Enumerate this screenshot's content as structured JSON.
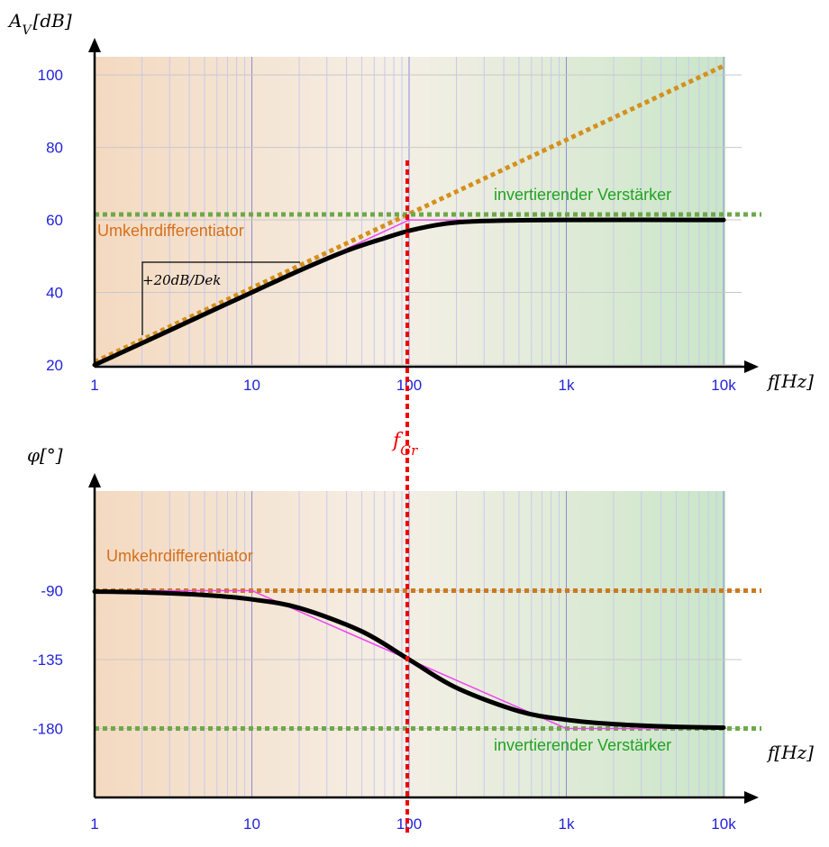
{
  "colors": {
    "bg_left": "#f4d9c0",
    "bg_mid": "#f5efe6",
    "bg_right": "#c9e6c8",
    "grid_major": "#8b8bd6",
    "grid_minor": "#c9c9ec",
    "tick_text": "#2323d8",
    "asymptote_orange": "#d4901c",
    "asymptote_orange_phase": "#cc7a1e",
    "asymptote_green": "#6fa84a",
    "response": "#000000",
    "approx": "#ee44ee",
    "cutoff": "#ee0000"
  },
  "cutoff": {
    "label": "f",
    "sub": "Gr",
    "x": 100
  },
  "chart_data": [
    {
      "type": "line",
      "name": "amplitude",
      "xscale": "log",
      "xlim": [
        1,
        10000
      ],
      "ylim": [
        20,
        105
      ],
      "x_ticks": [
        1,
        10,
        100,
        1000,
        10000
      ],
      "x_tick_labels": [
        "1",
        "10",
        "100",
        "1k",
        "10k"
      ],
      "y_ticks": [
        20,
        40,
        60,
        80,
        100
      ],
      "y_tick_labels": [
        "20",
        "40",
        "60",
        "80",
        "100"
      ],
      "ylabel_main": "A",
      "ylabel_sub": "V",
      "ylabel_unit": "[dB]",
      "xlabel": "f[Hz]",
      "grid": true,
      "annotations": {
        "left": "Umkehrdifferentiator",
        "right": "invertierender Verstärker",
        "slope": "+20dB/Dek"
      },
      "asymptote_differentiator": {
        "x": [
          1,
          10000
        ],
        "y": [
          20.8,
          102.5
        ]
      },
      "asymptote_amplifier": {
        "x": [
          1,
          10000
        ],
        "y": 61.5
      },
      "bode_approx": {
        "x": [
          1,
          100,
          250,
          10000
        ],
        "y": [
          20,
          60,
          60,
          60
        ]
      },
      "response": {
        "x": [
          1,
          2,
          5,
          10,
          20,
          40,
          70,
          100,
          150,
          200,
          300,
          500,
          1000,
          10000
        ],
        "y": [
          20,
          26,
          34,
          40,
          46,
          51.5,
          55,
          57,
          58.6,
          59.3,
          59.7,
          59.9,
          60,
          60
        ]
      }
    },
    {
      "type": "line",
      "name": "phase",
      "xscale": "log",
      "xlim": [
        1,
        10000
      ],
      "ylim": [
        -225,
        -25
      ],
      "x_ticks": [
        1,
        10,
        100,
        1000,
        10000
      ],
      "x_tick_labels": [
        "1",
        "10",
        "100",
        "1k",
        "10k"
      ],
      "y_ticks": [
        -90,
        -135,
        -180
      ],
      "y_tick_labels": [
        "-90",
        "-135",
        "-180"
      ],
      "ylabel": "φ[°]",
      "xlabel": "f[Hz]",
      "grid": true,
      "annotations": {
        "left": "Umkehrdifferentiator",
        "right": "invertierender Verstärker"
      },
      "asymptote_differentiator": {
        "x": [
          1,
          10000
        ],
        "y": -90
      },
      "asymptote_amplifier": {
        "x": [
          1,
          10000
        ],
        "y": -180
      },
      "bode_approx": {
        "x": [
          1,
          10,
          1000,
          10000
        ],
        "y": [
          -90,
          -90,
          -180,
          -180
        ]
      },
      "response": {
        "x": [
          1,
          2,
          5,
          10,
          20,
          50,
          100,
          200,
          500,
          1000,
          2000,
          5000,
          10000
        ],
        "y": [
          -90.6,
          -91.1,
          -92.9,
          -95.7,
          -101.3,
          -116.6,
          -135,
          -153.4,
          -168.7,
          -174.3,
          -177.1,
          -178.9,
          -179.4
        ]
      }
    }
  ]
}
